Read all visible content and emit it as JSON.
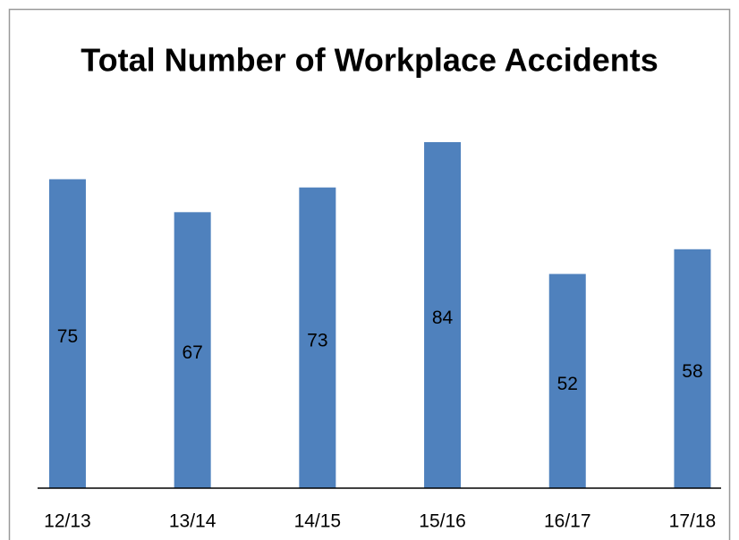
{
  "chart_data": {
    "type": "bar",
    "title": "Total Number of Workplace Accidents",
    "categories": [
      "12/13",
      "13/14",
      "14/15",
      "15/16",
      "16/17",
      "17/18"
    ],
    "values": [
      75,
      67,
      73,
      84,
      52,
      58
    ],
    "color": "#4f81bd"
  }
}
